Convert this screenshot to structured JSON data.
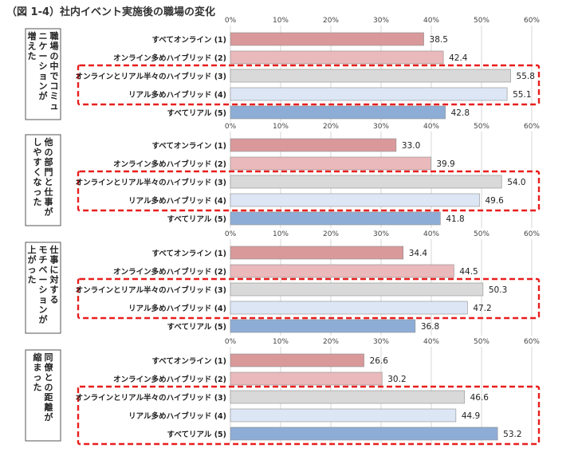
{
  "figure_title": "（図 1-4）社内イベント実施後の職場の変化",
  "colors": {
    "all_online": "#d9999b",
    "online_majority": "#eab9bb",
    "half_half": "#d9d9d9",
    "real_majority": "#dce6f4",
    "all_real": "#8eadd6",
    "bar_border": "#8e8e8e",
    "highlight": "#e81e1e",
    "grid": "#d7d7d7"
  },
  "chart_data": {
    "type": "bar",
    "orientation": "horizontal",
    "categories": [
      "すべてオンライン (1)",
      "オンライン多めハイブリッド (2)",
      "オンラインとリアル半々のハイブリッド (3)",
      "リアル多めハイブリッド (4)",
      "すべてリアル (5)"
    ],
    "xlim": [
      0,
      60
    ],
    "ticks": [
      "0%",
      "10%",
      "20%",
      "30%",
      "40%",
      "50%",
      "60%"
    ],
    "grid": true,
    "panels": [
      {
        "label": "職場の中でコミュニケーションが増えた",
        "label_lines": [
          "職場の中でコミュ",
          "ニケーションが",
          "増えた"
        ],
        "values": [
          38.5,
          42.4,
          55.8,
          55.1,
          42.8
        ],
        "value_labels": [
          "38.5",
          "42.4",
          "55.8",
          "55.1",
          "42.8"
        ],
        "highlight": [
          2,
          3
        ]
      },
      {
        "label": "他の部門と仕事がしやすくなった",
        "label_lines": [
          "他の部門と仕事が",
          "しやすくなった"
        ],
        "values": [
          33.0,
          39.9,
          54.0,
          49.6,
          41.8
        ],
        "value_labels": [
          "33.0",
          "39.9",
          "54.0",
          "49.6",
          "41.8"
        ],
        "highlight": [
          2,
          3
        ]
      },
      {
        "label": "仕事に対するモチベーションが上がった",
        "label_lines": [
          "仕事に対する",
          "モチベーションが",
          "上がった"
        ],
        "values": [
          34.4,
          44.5,
          50.3,
          47.2,
          36.8
        ],
        "value_labels": [
          "34.4",
          "44.5",
          "50.3",
          "47.2",
          "36.8"
        ],
        "highlight": [
          2,
          3
        ]
      },
      {
        "label": "同僚との距離が縮まった",
        "label_lines": [
          "同僚との距離が",
          "縮まった"
        ],
        "values": [
          26.6,
          30.2,
          46.6,
          44.9,
          53.2
        ],
        "value_labels": [
          "26.6",
          "30.2",
          "46.6",
          "44.9",
          "53.2"
        ],
        "highlight": [
          2,
          3,
          4
        ]
      }
    ]
  }
}
